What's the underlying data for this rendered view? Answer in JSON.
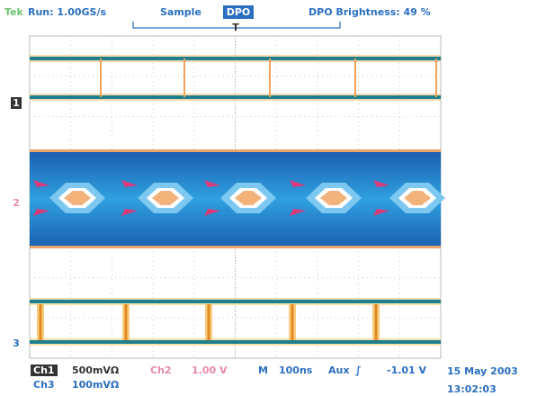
{
  "header": {
    "brand": "Tek",
    "run": "Run: 1.00GS/s",
    "mode": "Sample",
    "dpo": "DPO",
    "brightness": "DPO Brightness: 49 %",
    "trigger_marker": "T"
  },
  "channel_markers": [
    "1",
    "2",
    "3"
  ],
  "footer": {
    "row1": {
      "ch1": "Ch1",
      "ch1_scale": "500mVΩ",
      "ch2": "Ch2",
      "ch2_scale": "1.00 V",
      "m": "M",
      "timebase": "100ns",
      "aux": "Aux",
      "slope": "∫",
      "trigger_level": "-1.01 V",
      "date": "15 May 2003"
    },
    "row2": {
      "ch3": "Ch3",
      "ch3_scale": "100mVΩ",
      "time": "13:02:03"
    }
  }
}
